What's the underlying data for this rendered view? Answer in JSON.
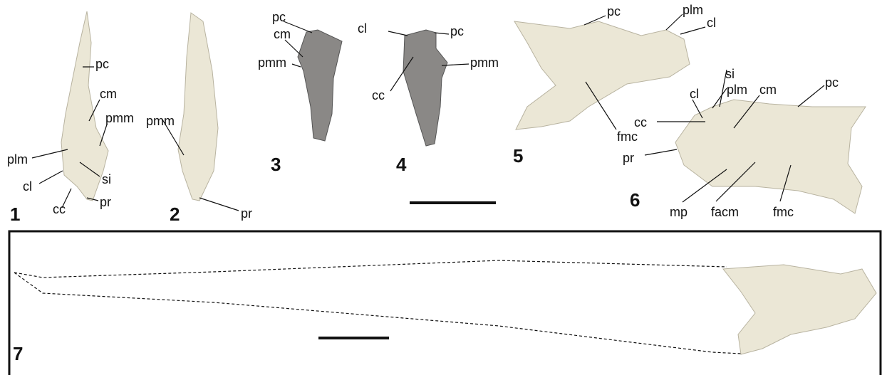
{
  "panels": [
    {
      "number": "1",
      "labels": [
        "pc",
        "cm",
        "pmm",
        "plm",
        "cl",
        "si",
        "cc",
        "pr"
      ]
    },
    {
      "number": "2",
      "labels": [
        "pmm",
        "pr"
      ]
    },
    {
      "number": "3",
      "labels": [
        "pc",
        "cm",
        "pmm"
      ]
    },
    {
      "number": "4",
      "labels": [
        "cl",
        "pc",
        "pmm",
        "cc"
      ]
    },
    {
      "number": "5",
      "labels": [
        "pc",
        "plm",
        "cl",
        "fmc"
      ]
    },
    {
      "number": "6",
      "labels": [
        "si",
        "plm",
        "cm",
        "pc",
        "cl",
        "cc",
        "pr",
        "mp",
        "facm",
        "fmc"
      ]
    },
    {
      "number": "7",
      "labels": []
    }
  ]
}
